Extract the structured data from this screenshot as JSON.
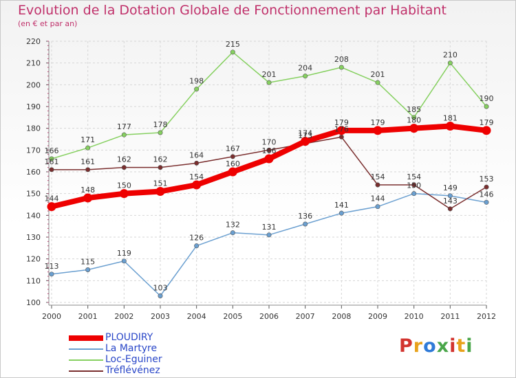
{
  "header": {
    "title": "Evolution de la Dotation Globale de Fonctionnement par Habitant",
    "subtitle": "(en € et par an)"
  },
  "brand": {
    "text": "Proxiti",
    "letters": [
      {
        "ch": "P",
        "color": "#d2342f"
      },
      {
        "ch": "r",
        "color": "#e8a21c"
      },
      {
        "ch": "o",
        "color": "#2f7ad8"
      },
      {
        "ch": "x",
        "color": "#4aa64a"
      },
      {
        "ch": "i",
        "color": "#d2342f"
      },
      {
        "ch": "t",
        "color": "#e8a21c"
      },
      {
        "ch": "i",
        "color": "#4aa64a"
      }
    ]
  },
  "chart_data": {
    "type": "line",
    "title": "Evolution de la Dotation Globale de Fonctionnement par Habitant",
    "subtitle": "(en € et par an)",
    "xlabel": "",
    "ylabel": "",
    "categories": [
      "2000",
      "2001",
      "2002",
      "2003",
      "2004",
      "2005",
      "2006",
      "2007",
      "2008",
      "2009",
      "2010",
      "2011",
      "2012"
    ],
    "ylim": [
      100,
      220
    ],
    "yticks": [
      100,
      110,
      120,
      130,
      140,
      150,
      160,
      170,
      180,
      190,
      200,
      210,
      220
    ],
    "grid": true,
    "legend_position": "bottom-left",
    "series": [
      {
        "name": "PLOUDIRY",
        "color": "#ee0000",
        "thick": true,
        "values": [
          144,
          148,
          150,
          151,
          154,
          160,
          166,
          174,
          179,
          179,
          180,
          181,
          179
        ]
      },
      {
        "name": "La Martyre",
        "color": "#6a9fd0",
        "thick": false,
        "values": [
          113,
          115,
          119,
          103,
          126,
          132,
          131,
          136,
          141,
          144,
          150,
          149,
          146
        ]
      },
      {
        "name": "Loc-Eguiner",
        "color": "#86d060",
        "thick": false,
        "values": [
          166,
          171,
          177,
          178,
          198,
          215,
          201,
          204,
          208,
          201,
          185,
          210,
          190
        ]
      },
      {
        "name": "Tréflévénez",
        "color": "#7a2e2e",
        "thick": false,
        "values": [
          161,
          161,
          162,
          162,
          164,
          167,
          170,
          173,
          176,
          154,
          154,
          143,
          153
        ]
      }
    ]
  }
}
